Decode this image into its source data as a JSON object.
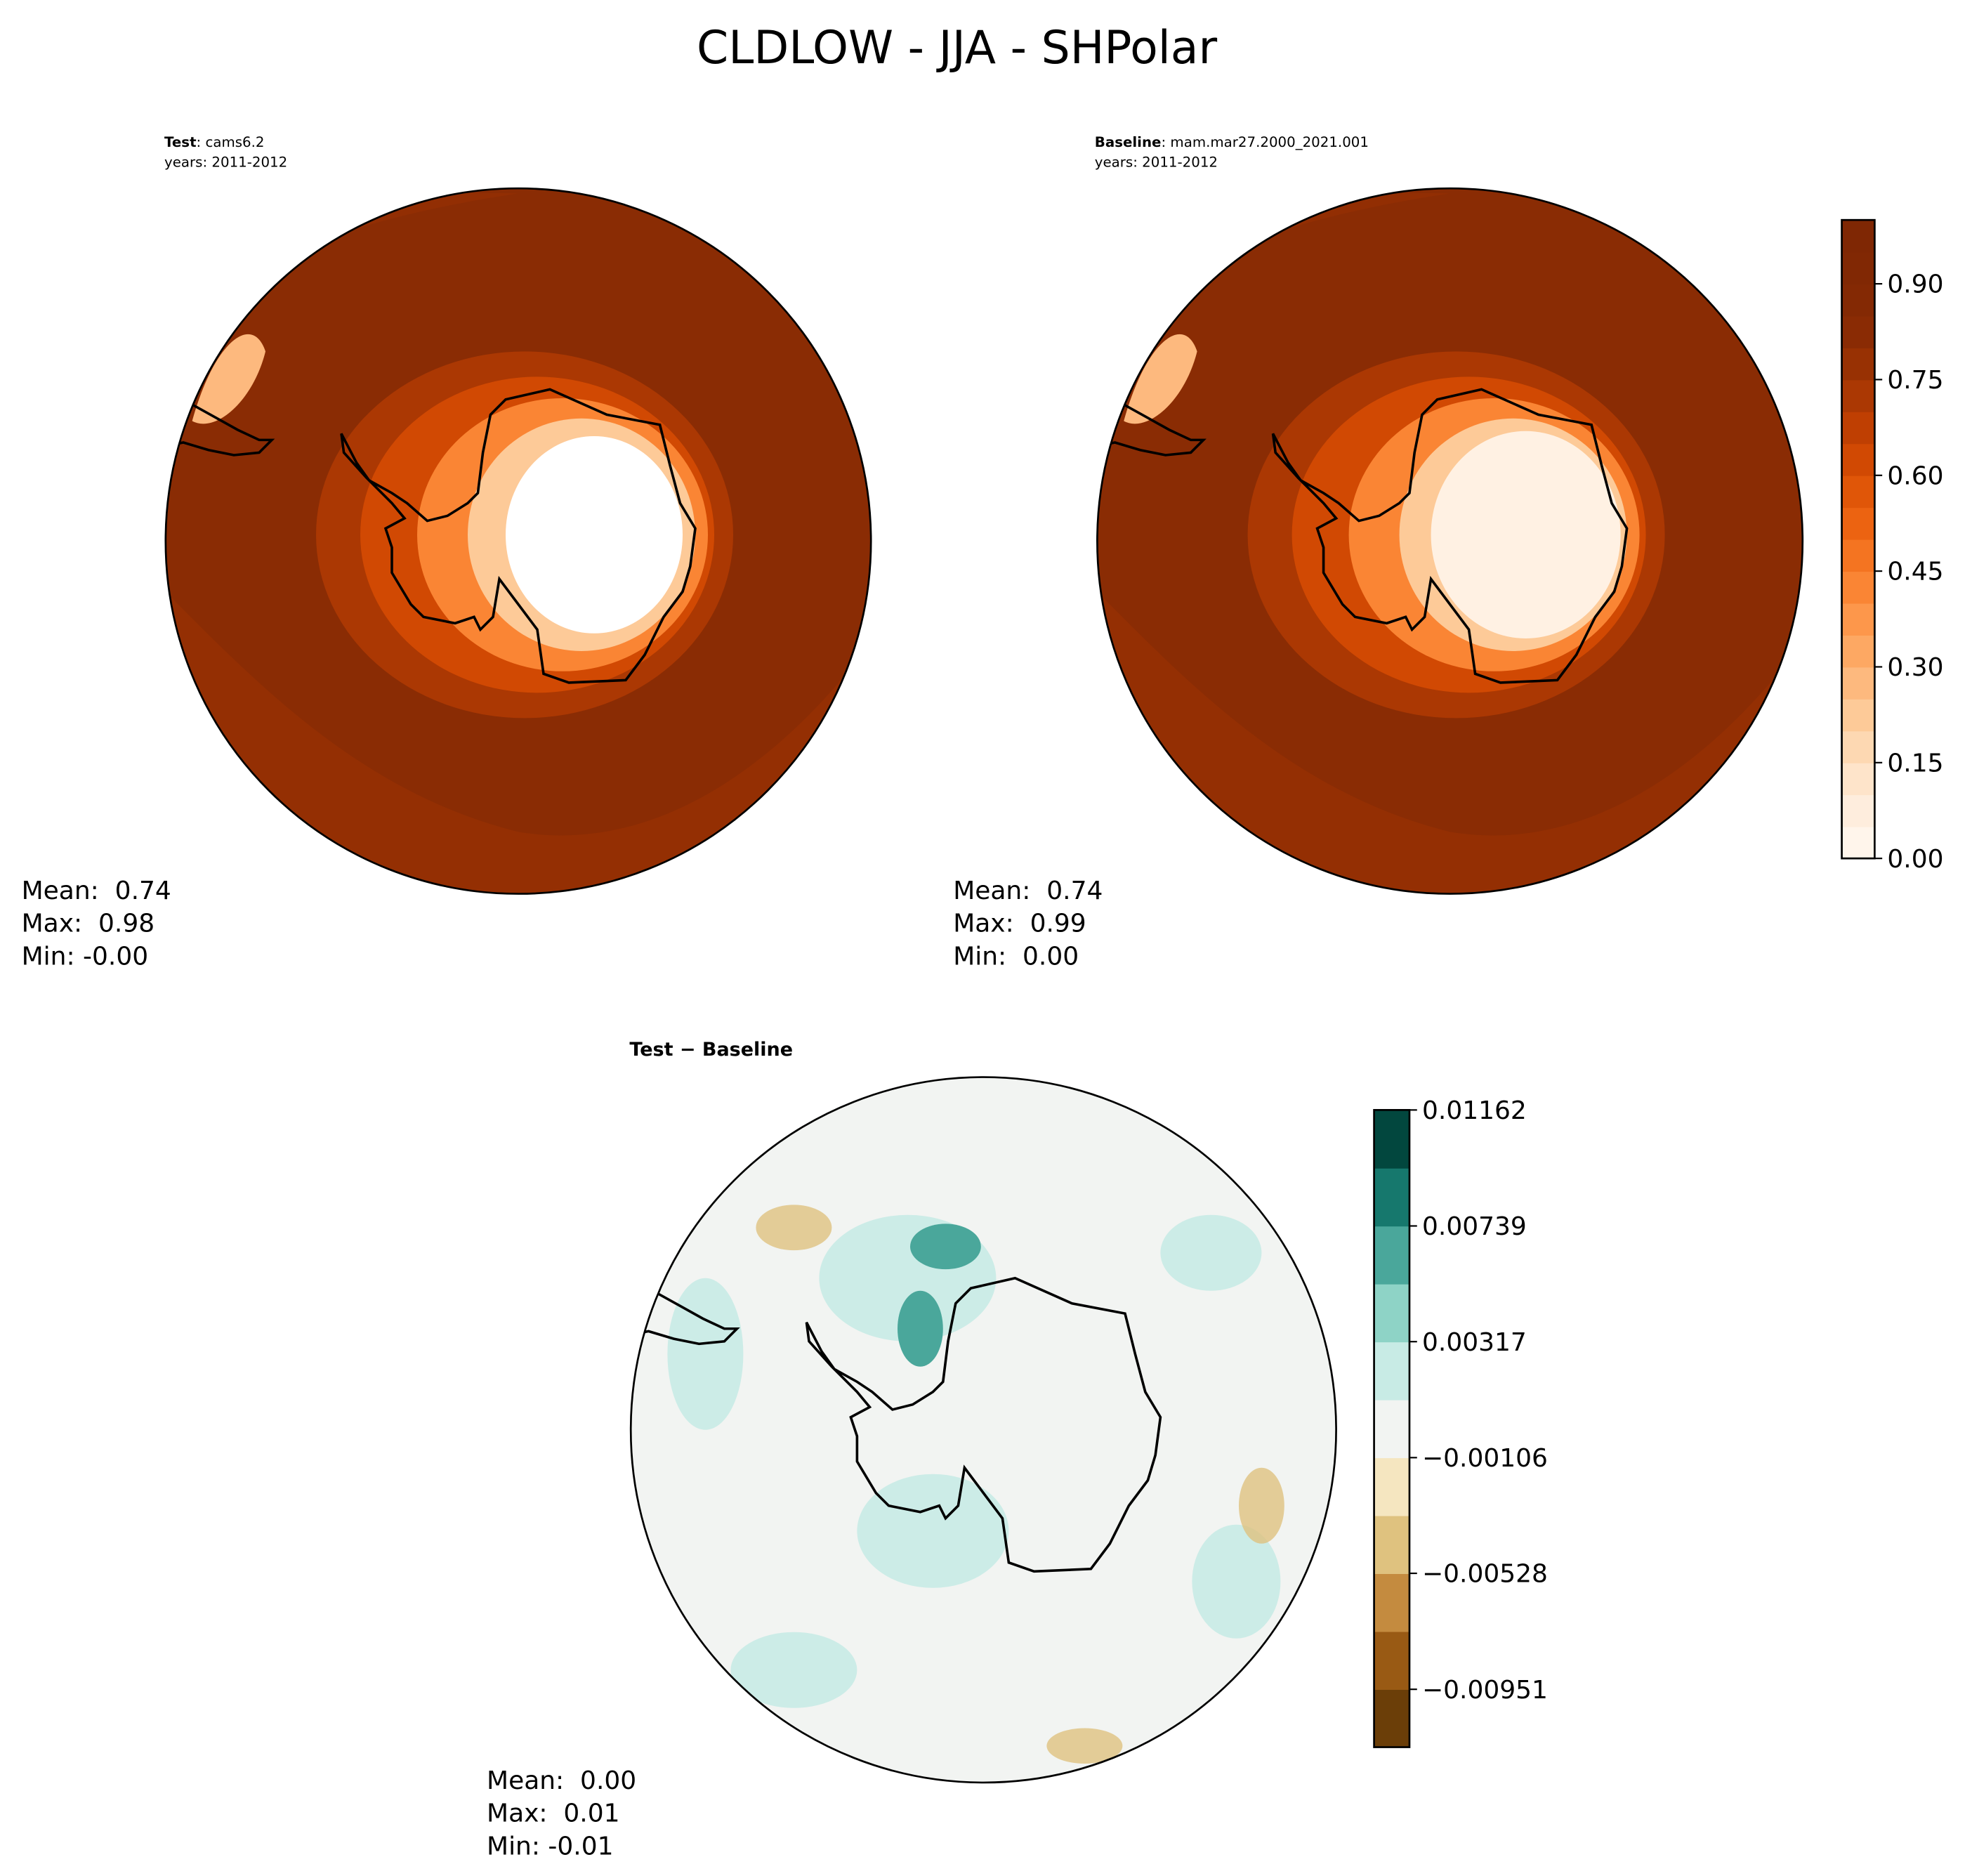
{
  "title": "CLDLOW - JJA - SHPolar",
  "chart_data": [
    {
      "type": "map",
      "label": "Test",
      "case": ": cams6.2",
      "subtitle": "years: 2011-2012",
      "stats": [
        "Mean:  0.74",
        "Max:  0.98",
        "Min: -0.00"
      ]
    },
    {
      "type": "map",
      "label": "Baseline",
      "case": ": mam.mar27.2000_2021.001",
      "subtitle": "years: 2011-2012",
      "stats": [
        "Mean:  0.74",
        "Max:  0.99",
        "Min:  0.00"
      ],
      "colorbar": {
        "ylim": [
          0,
          1.0
        ],
        "yticks": [
          {
            "value": 0,
            "label": "0.00"
          },
          {
            "value": 0.15,
            "label": "0.15"
          },
          {
            "value": 0.3,
            "label": "0.30"
          },
          {
            "value": 0.45,
            "label": "0.45"
          },
          {
            "value": 0.6,
            "label": "0.60"
          },
          {
            "value": 0.75,
            "label": "0.75"
          },
          {
            "value": 0.9,
            "label": "0.90"
          }
        ],
        "colors": [
          "#fff5eb",
          "#feeddd",
          "#fee4ca",
          "#fdd8b2",
          "#fdca98",
          "#fdb97e",
          "#fda863",
          "#fd974b",
          "#fa8534",
          "#f47421",
          "#ec6311",
          "#e05608",
          "#d14903",
          "#bf3f02",
          "#ab3803",
          "#983103",
          "#8a2b04",
          "#842904",
          "#812804",
          "#7f2704"
        ]
      }
    },
    {
      "type": "map",
      "label": "Test − Baseline",
      "stats": [
        "Mean:  0.00",
        "Max:  0.01",
        "Min: -0.01"
      ],
      "colorbar": {
        "ylim": [
          -0.01162,
          0.01162
        ],
        "yticks": [
          0.01162,
          {
            "value": 0.00739,
            "label": "0.00739"
          },
          {
            "value": 0.00317,
            "label": "0.00317"
          },
          {
            "value": -0.00106,
            "label": "−0.00106"
          },
          {
            "value": -0.00528,
            "label": "−0.00528"
          },
          {
            "value": -0.00951,
            "label": "−0.00951"
          }
        ],
        "colors": [
          "#6b3e08",
          "#995a14",
          "#c48b3f",
          "#dfc27f",
          "#f5e6c0",
          "#f2f4f2",
          "#c8ebe5",
          "#8ed3c6",
          "#4aa79b",
          "#16786d",
          "#02473e"
        ]
      }
    }
  ]
}
